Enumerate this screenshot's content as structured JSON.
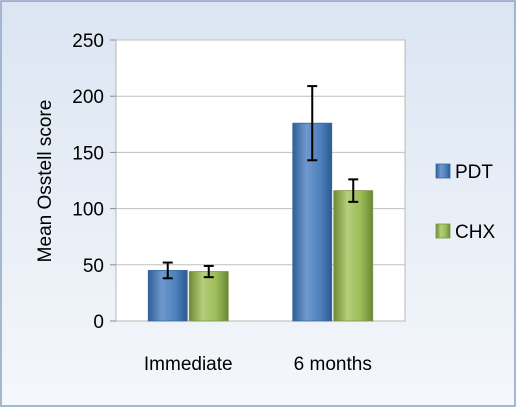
{
  "chart_data": {
    "type": "bar",
    "title": "",
    "xlabel": "",
    "ylabel": "Mean Osstell score",
    "ylim": [
      0,
      250
    ],
    "yticks": [
      0,
      50,
      100,
      150,
      200,
      250
    ],
    "grid": true,
    "legend_position": "right",
    "categories": [
      "Immediate",
      "6 months"
    ],
    "series": [
      {
        "name": "PDT",
        "values": [
          45,
          176
        ],
        "errors": [
          7,
          33
        ],
        "color": "#4F81BD"
      },
      {
        "name": "CHX",
        "values": [
          44,
          116
        ],
        "errors": [
          5,
          10
        ],
        "color": "#9BBB59"
      }
    ]
  }
}
